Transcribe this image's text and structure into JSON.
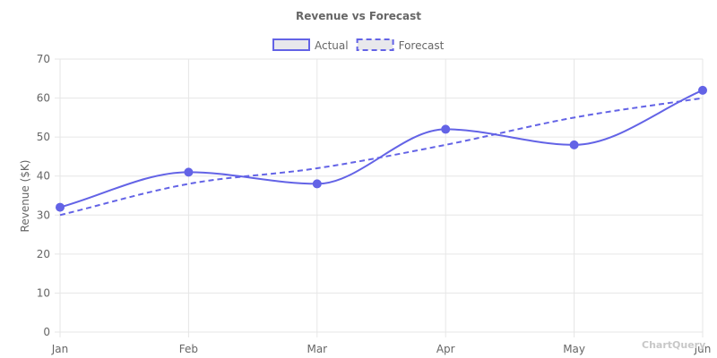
{
  "chart_data": {
    "type": "line",
    "title": "Revenue vs Forecast",
    "xlabel": "",
    "ylabel": "Revenue ($K)",
    "categories": [
      "Jan",
      "Feb",
      "Mar",
      "Apr",
      "May",
      "Jun"
    ],
    "ylim": [
      0,
      70
    ],
    "yticks": [
      0,
      10,
      20,
      30,
      40,
      50,
      60,
      70
    ],
    "grid": true,
    "legend_position": "top-center",
    "series": [
      {
        "name": "Actual",
        "values": [
          32,
          41,
          38,
          52,
          48,
          62
        ],
        "color": "#6363e6",
        "line_style": "solid",
        "smooth": true,
        "markers": true
      },
      {
        "name": "Forecast",
        "values": [
          30,
          38,
          42,
          48,
          55,
          60
        ],
        "color": "#6363e6",
        "line_style": "dashed",
        "smooth": true,
        "markers": false
      }
    ]
  },
  "watermark": "ChartQuery",
  "colors": {
    "grid": "#e6e6e6",
    "text": "#666666",
    "legend_fill": "#e8e8ec",
    "watermark": "#c8c8c8"
  }
}
